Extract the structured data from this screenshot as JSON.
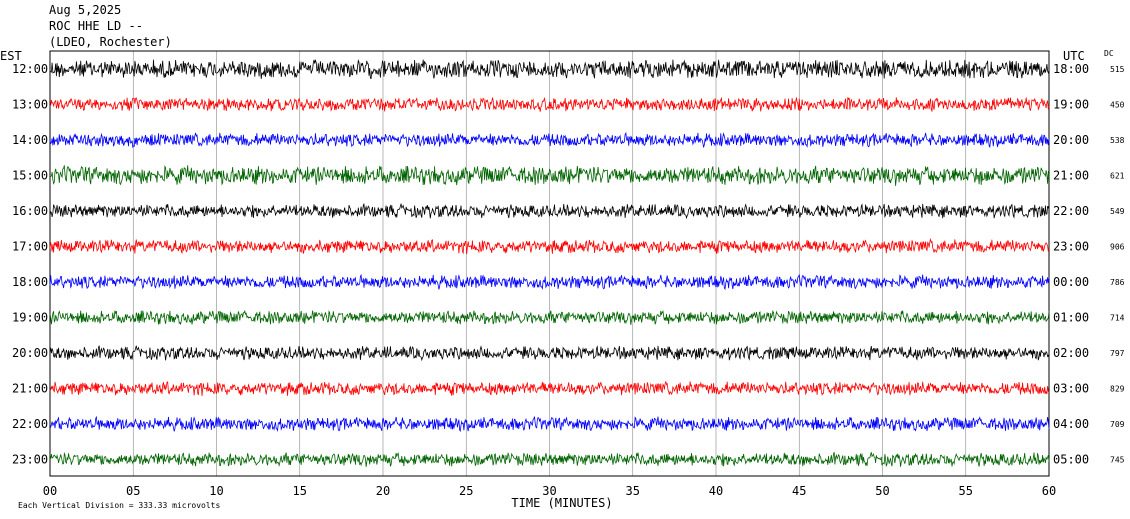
{
  "header": {
    "date": "Aug 5,2025",
    "station": "ROC HHE LD --",
    "network": "(LDEO, Rochester)"
  },
  "chart_data": {
    "type": "line",
    "left_axis_label": "EST",
    "right_axis_label": "UTC",
    "dc_label": "DC",
    "xlabel": "TIME (MINUTES)",
    "xlim": [
      0,
      60
    ],
    "x_ticks": [
      "00",
      "05",
      "10",
      "15",
      "20",
      "25",
      "30",
      "35",
      "40",
      "45",
      "50",
      "55",
      "60"
    ],
    "scale_note": "Each Vertical Division =  333.33 microvolts",
    "rows": [
      {
        "est": "12:00",
        "utc": "18:00",
        "dc": "515",
        "color": "#000000"
      },
      {
        "est": "13:00",
        "utc": "19:00",
        "dc": "450",
        "color": "#ff0000"
      },
      {
        "est": "14:00",
        "utc": "20:00",
        "dc": "538",
        "color": "#0000ff"
      },
      {
        "est": "15:00",
        "utc": "21:00",
        "dc": "621",
        "color": "#006400"
      },
      {
        "est": "16:00",
        "utc": "22:00",
        "dc": "549",
        "color": "#000000"
      },
      {
        "est": "17:00",
        "utc": "23:00",
        "dc": "906",
        "color": "#ff0000"
      },
      {
        "est": "18:00",
        "utc": "00:00",
        "dc": "786",
        "color": "#0000ff"
      },
      {
        "est": "19:00",
        "utc": "01:00",
        "dc": "714",
        "color": "#006400"
      },
      {
        "est": "20:00",
        "utc": "02:00",
        "dc": "797",
        "color": "#000000"
      },
      {
        "est": "21:00",
        "utc": "03:00",
        "dc": "829",
        "color": "#ff0000"
      },
      {
        "est": "22:00",
        "utc": "04:00",
        "dc": "709",
        "color": "#0000ff"
      },
      {
        "est": "23:00",
        "utc": "05:00",
        "dc": "745",
        "color": "#006400"
      }
    ]
  }
}
